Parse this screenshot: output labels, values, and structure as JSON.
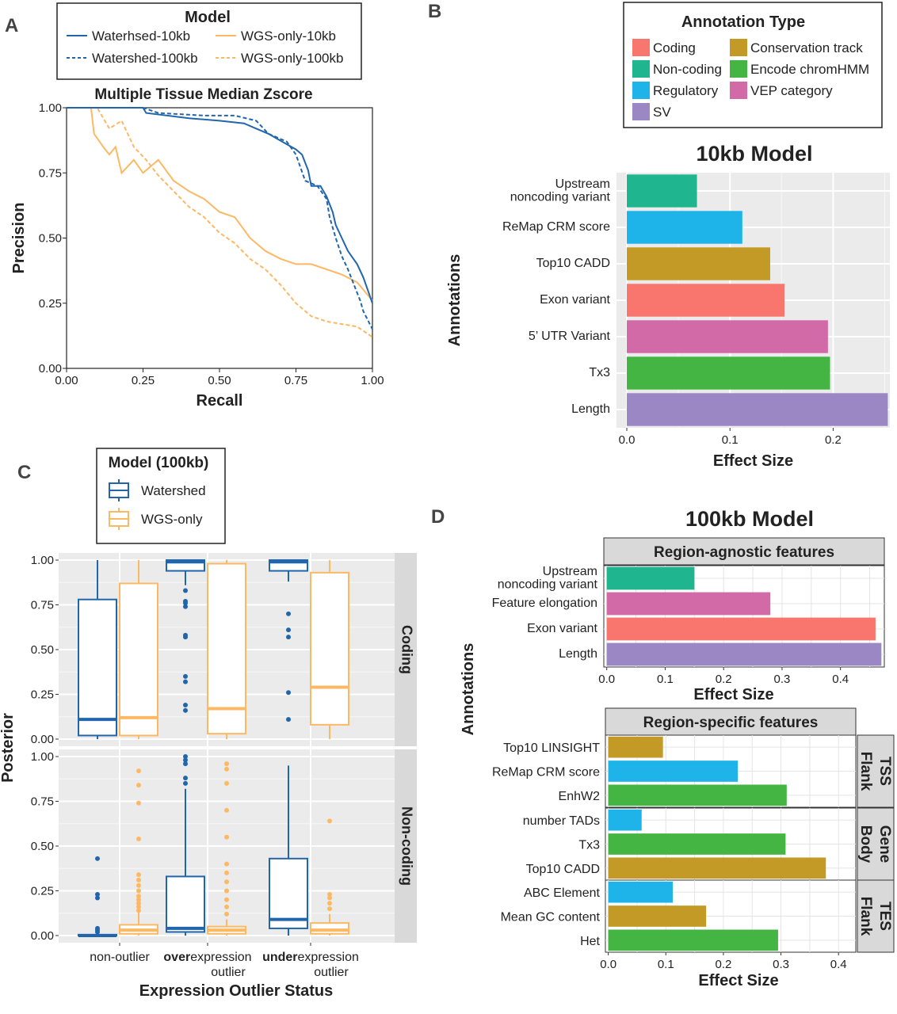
{
  "colors": {
    "watershed": "#2166ac",
    "wgs": "#fdb863",
    "coding": "#f8766d",
    "noncoding": "#1fb58f",
    "regulatory": "#1fb4e9",
    "sv": "#9a87c4",
    "conservation": "#c49a26",
    "chromhmm": "#44b543",
    "vep": "#d36aa8",
    "panel_bg": "#ebebeb",
    "strip_bg": "#d9d9d9"
  },
  "panel_labels": {
    "a": "A",
    "b": "B",
    "c": "C",
    "d": "D"
  },
  "chart_data": [
    {
      "id": "A",
      "type": "line",
      "title": "Multiple Tissue Median Zscore",
      "xlabel": "Recall",
      "ylabel": "Precision",
      "xlim": [
        0,
        1
      ],
      "ylim": [
        0,
        1
      ],
      "xticks": [
        "0.00",
        "0.25",
        "0.50",
        "0.75",
        "1.00"
      ],
      "yticks": [
        "0.00",
        "0.25",
        "0.50",
        "0.75",
        "1.00"
      ],
      "legend": {
        "title": "Model",
        "position": "top",
        "entries": [
          "Waterhsed-10kb",
          "Watershed-100kb",
          "WGS-only-10kb",
          "WGS-only-100kb"
        ]
      },
      "series": [
        {
          "name": "Waterhsed-10kb",
          "color": "#2166ac",
          "dash": false,
          "points": [
            [
              0,
              1
            ],
            [
              0.25,
              1
            ],
            [
              0.26,
              0.98
            ],
            [
              0.4,
              0.96
            ],
            [
              0.5,
              0.95
            ],
            [
              0.58,
              0.94
            ],
            [
              0.62,
              0.92
            ],
            [
              0.66,
              0.9
            ],
            [
              0.72,
              0.86
            ],
            [
              0.75,
              0.84
            ],
            [
              0.77,
              0.82
            ],
            [
              0.79,
              0.76
            ],
            [
              0.8,
              0.7
            ],
            [
              0.83,
              0.7
            ],
            [
              0.85,
              0.66
            ],
            [
              0.87,
              0.6
            ],
            [
              0.88,
              0.55
            ],
            [
              0.9,
              0.5
            ],
            [
              0.92,
              0.45
            ],
            [
              0.95,
              0.4
            ],
            [
              0.97,
              0.35
            ],
            [
              1.0,
              0.25
            ]
          ]
        },
        {
          "name": "Watershed-100kb",
          "color": "#2166ac",
          "dash": true,
          "points": [
            [
              0,
              1
            ],
            [
              0.25,
              1
            ],
            [
              0.3,
              0.98
            ],
            [
              0.45,
              0.97
            ],
            [
              0.55,
              0.97
            ],
            [
              0.62,
              0.95
            ],
            [
              0.66,
              0.9
            ],
            [
              0.72,
              0.87
            ],
            [
              0.75,
              0.82
            ],
            [
              0.78,
              0.72
            ],
            [
              0.82,
              0.7
            ],
            [
              0.85,
              0.65
            ],
            [
              0.86,
              0.58
            ],
            [
              0.88,
              0.5
            ],
            [
              0.9,
              0.43
            ],
            [
              0.92,
              0.38
            ],
            [
              0.94,
              0.32
            ],
            [
              0.96,
              0.26
            ],
            [
              0.97,
              0.22
            ],
            [
              1.0,
              0.15
            ]
          ]
        },
        {
          "name": "WGS-only-10kb",
          "color": "#fdb863",
          "dash": false,
          "points": [
            [
              0,
              1
            ],
            [
              0.08,
              1
            ],
            [
              0.09,
              0.9
            ],
            [
              0.12,
              0.85
            ],
            [
              0.14,
              0.82
            ],
            [
              0.16,
              0.85
            ],
            [
              0.18,
              0.75
            ],
            [
              0.22,
              0.8
            ],
            [
              0.25,
              0.75
            ],
            [
              0.3,
              0.8
            ],
            [
              0.35,
              0.72
            ],
            [
              0.4,
              0.68
            ],
            [
              0.45,
              0.65
            ],
            [
              0.5,
              0.6
            ],
            [
              0.55,
              0.58
            ],
            [
              0.6,
              0.5
            ],
            [
              0.65,
              0.45
            ],
            [
              0.7,
              0.42
            ],
            [
              0.75,
              0.4
            ],
            [
              0.8,
              0.4
            ],
            [
              0.85,
              0.38
            ],
            [
              0.9,
              0.36
            ],
            [
              0.95,
              0.33
            ],
            [
              1.0,
              0.26
            ]
          ]
        },
        {
          "name": "WGS-only-100kb",
          "color": "#fdb863",
          "dash": true,
          "points": [
            [
              0,
              1
            ],
            [
              0.1,
              1
            ],
            [
              0.14,
              0.92
            ],
            [
              0.18,
              0.95
            ],
            [
              0.22,
              0.85
            ],
            [
              0.26,
              0.8
            ],
            [
              0.3,
              0.74
            ],
            [
              0.35,
              0.68
            ],
            [
              0.4,
              0.62
            ],
            [
              0.45,
              0.58
            ],
            [
              0.5,
              0.52
            ],
            [
              0.55,
              0.48
            ],
            [
              0.6,
              0.42
            ],
            [
              0.65,
              0.38
            ],
            [
              0.7,
              0.32
            ],
            [
              0.75,
              0.25
            ],
            [
              0.8,
              0.2
            ],
            [
              0.85,
              0.18
            ],
            [
              0.9,
              0.17
            ],
            [
              0.95,
              0.16
            ],
            [
              1.0,
              0.12
            ]
          ]
        }
      ]
    },
    {
      "id": "B",
      "type": "bar",
      "orientation": "horizontal",
      "title": "10kb Model",
      "xlabel": "Effect Size",
      "ylabel": "Annotations",
      "xlim": [
        -0.01,
        0.255
      ],
      "xticks": [
        "0.0",
        "0.1",
        "0.2"
      ],
      "legend": {
        "title": "Annotation Type",
        "position": "top-right",
        "entries": [
          {
            "label": "Coding",
            "color": "#f8766d"
          },
          {
            "label": "Conservation track",
            "color": "#c49a26"
          },
          {
            "label": "Non-coding",
            "color": "#1fb58f"
          },
          {
            "label": "Encode chromHMM",
            "color": "#44b543"
          },
          {
            "label": "Regulatory",
            "color": "#1fb4e9"
          },
          {
            "label": "VEP category",
            "color": "#d36aa8"
          },
          {
            "label": "SV",
            "color": "#9a87c4"
          }
        ]
      },
      "bars": [
        {
          "label": "Upstream\nnoncoding variant",
          "value": 0.068,
          "type": "Non-coding"
        },
        {
          "label": "ReMap CRM score",
          "value": 0.112,
          "type": "Regulatory"
        },
        {
          "label": "Top10 CADD",
          "value": 0.139,
          "type": "Conservation track"
        },
        {
          "label": "Exon variant",
          "value": 0.153,
          "type": "Coding"
        },
        {
          "label": "5’ UTR Variant",
          "value": 0.195,
          "type": "VEP category"
        },
        {
          "label": "Tx3",
          "value": 0.197,
          "type": "Encode chromHMM"
        },
        {
          "label": "Length",
          "value": 0.253,
          "type": "SV"
        }
      ]
    },
    {
      "id": "C",
      "type": "box",
      "xlabel": "Expression Outlier Status",
      "ylabel": "Posterior",
      "ylim": [
        -0.04,
        1.04
      ],
      "yticks": [
        "0.00",
        "0.25",
        "0.50",
        "0.75",
        "1.00"
      ],
      "categories": [
        {
          "bold": "",
          "rest": "non-outlier",
          "line2": ""
        },
        {
          "bold": "over",
          "rest": "expression",
          "line2": "outlier"
        },
        {
          "bold": "under",
          "rest": "expression",
          "line2": "outlier"
        }
      ],
      "legend": {
        "title": "Model (100kb)",
        "position": "top-left",
        "entries": [
          "Watershed",
          "WGS-only"
        ]
      },
      "facets": [
        {
          "label": "Coding",
          "boxes": [
            {
              "cat": 0,
              "model": "Watershed",
              "q1": 0.02,
              "med": 0.11,
              "q3": 0.78,
              "lo": 0.0,
              "hi": 1.0,
              "out": []
            },
            {
              "cat": 0,
              "model": "WGS-only",
              "q1": 0.02,
              "med": 0.12,
              "q3": 0.87,
              "lo": 0.0,
              "hi": 1.0,
              "out": []
            },
            {
              "cat": 1,
              "model": "Watershed",
              "q1": 0.94,
              "med": 0.99,
              "q3": 1.0,
              "lo": 0.86,
              "hi": 1.0,
              "out": [
                0.83,
                0.77,
                0.76,
                0.74,
                0.58,
                0.57,
                0.35,
                0.32,
                0.19,
                0.16
              ]
            },
            {
              "cat": 1,
              "model": "WGS-only",
              "q1": 0.03,
              "med": 0.17,
              "q3": 0.98,
              "lo": 0.0,
              "hi": 1.0,
              "out": []
            },
            {
              "cat": 2,
              "model": "Watershed",
              "q1": 0.94,
              "med": 0.99,
              "q3": 1.0,
              "lo": 0.88,
              "hi": 1.0,
              "out": [
                0.7,
                0.61,
                0.57,
                0.26,
                0.11
              ]
            },
            {
              "cat": 2,
              "model": "WGS-only",
              "q1": 0.08,
              "med": 0.29,
              "q3": 0.93,
              "lo": 0.0,
              "hi": 1.0,
              "out": []
            }
          ]
        },
        {
          "label": "Non-coding",
          "boxes": [
            {
              "cat": 0,
              "model": "Watershed",
              "q1": 0.0,
              "med": 0.0,
              "q3": 0.005,
              "lo": 0.0,
              "hi": 0.01,
              "out": [
                0.43,
                0.23,
                0.21,
                0.04,
                0.03,
                0.02
              ]
            },
            {
              "cat": 0,
              "model": "WGS-only",
              "q1": 0.01,
              "med": 0.03,
              "q3": 0.06,
              "lo": 0.0,
              "hi": 0.13,
              "out": [
                0.92,
                0.84,
                0.74,
                0.54,
                0.34,
                0.31,
                0.28,
                0.25,
                0.22,
                0.2,
                0.18,
                0.16,
                0.14
              ]
            },
            {
              "cat": 1,
              "model": "Watershed",
              "q1": 0.02,
              "med": 0.04,
              "q3": 0.33,
              "lo": 0.0,
              "hi": 0.82,
              "out": [
                1.0,
                0.98,
                0.96,
                0.88,
                0.85
              ]
            },
            {
              "cat": 1,
              "model": "WGS-only",
              "q1": 0.01,
              "med": 0.03,
              "q3": 0.05,
              "lo": 0.0,
              "hi": 0.09,
              "out": [
                0.96,
                0.93,
                0.85,
                0.7,
                0.55,
                0.4,
                0.35,
                0.3,
                0.25,
                0.2,
                0.16,
                0.12
              ]
            },
            {
              "cat": 2,
              "model": "Watershed",
              "q1": 0.04,
              "med": 0.09,
              "q3": 0.43,
              "lo": 0.0,
              "hi": 0.95,
              "out": []
            },
            {
              "cat": 2,
              "model": "WGS-only",
              "q1": 0.01,
              "med": 0.03,
              "q3": 0.07,
              "lo": 0.0,
              "hi": 0.12,
              "out": [
                0.64,
                0.23,
                0.21,
                0.18,
                0.15
              ]
            }
          ]
        }
      ]
    },
    {
      "id": "D1",
      "type": "bar",
      "orientation": "horizontal",
      "title": "100kb Model",
      "strip": "Region-agnostic features",
      "xlabel": "Effect Size",
      "ylabel": "Annotations",
      "xlim": [
        -0.005,
        0.475
      ],
      "xticks": [
        "0.0",
        "0.1",
        "0.2",
        "0.3",
        "0.4"
      ],
      "bars": [
        {
          "label": "Upstream\nnoncoding variant",
          "value": 0.15,
          "type": "Non-coding"
        },
        {
          "label": "Feature elongation",
          "value": 0.28,
          "type": "VEP category"
        },
        {
          "label": "Exon variant",
          "value": 0.46,
          "type": "Coding"
        },
        {
          "label": "Length",
          "value": 0.47,
          "type": "SV"
        }
      ]
    },
    {
      "id": "D2",
      "type": "bar",
      "orientation": "horizontal",
      "strip": "Region-specific features",
      "xlabel": "Effect Size",
      "xlim": [
        -0.005,
        0.43
      ],
      "xticks": [
        "0.0",
        "0.1",
        "0.2",
        "0.3",
        "0.4"
      ],
      "groups": [
        {
          "label": "TSS\nFlank",
          "bars": [
            {
              "label": "Top10 LINSIGHT",
              "value": 0.095,
              "type": "Conservation track"
            },
            {
              "label": "ReMap CRM score",
              "value": 0.225,
              "type": "Regulatory"
            },
            {
              "label": "EnhW2",
              "value": 0.31,
              "type": "Encode chromHMM"
            }
          ]
        },
        {
          "label": "Gene\nBody",
          "bars": [
            {
              "label": "number TADs",
              "value": 0.058,
              "type": "Regulatory"
            },
            {
              "label": "Tx3",
              "value": 0.308,
              "type": "Encode chromHMM"
            },
            {
              "label": "Top10 CADD",
              "value": 0.378,
              "type": "Conservation track"
            }
          ]
        },
        {
          "label": "TES\nFlank",
          "bars": [
            {
              "label": "ABC Element",
              "value": 0.112,
              "type": "Regulatory"
            },
            {
              "label": "Mean GC content",
              "value": 0.17,
              "type": "Conservation track"
            },
            {
              "label": "Het",
              "value": 0.295,
              "type": "Encode chromHMM"
            }
          ]
        }
      ]
    }
  ]
}
